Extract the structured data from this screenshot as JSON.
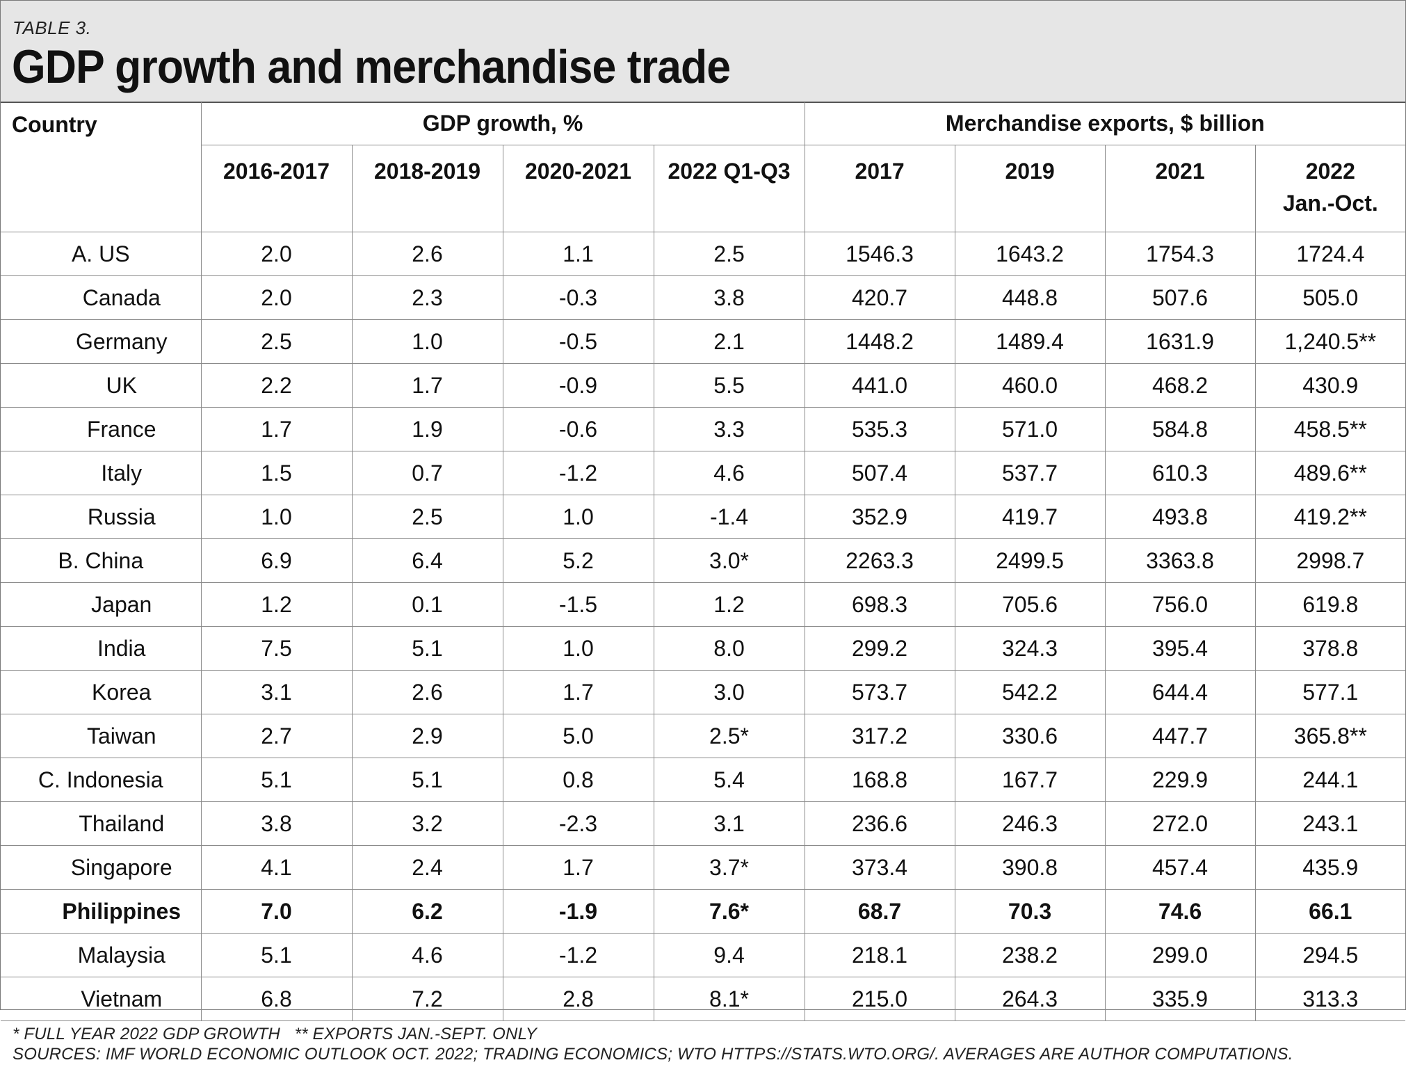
{
  "table_label": "TABLE 3.",
  "title": "GDP growth and merchandise trade",
  "headers": {
    "country": "Country",
    "gdp_group": "GDP growth, %",
    "exports_group": "Merchandise exports, $ billion",
    "gdp_cols": [
      "2016-2017",
      "2018-2019",
      "2020-2021",
      "2022 Q1-Q3"
    ],
    "export_cols": [
      "2017",
      "2019",
      "2021",
      "2022"
    ],
    "export_last_sub": "Jan.-Oct."
  },
  "rows": [
    {
      "country": "A. US",
      "values": [
        "2.0",
        "2.6",
        "1.1",
        "2.5",
        "1546.3",
        "1643.2",
        "1754.3",
        "1724.4"
      ]
    },
    {
      "country": "Canada",
      "values": [
        "2.0",
        "2.3",
        "-0.3",
        "3.8",
        "420.7",
        "448.8",
        "507.6",
        "505.0"
      ]
    },
    {
      "country": "Germany",
      "values": [
        "2.5",
        "1.0",
        "-0.5",
        "2.1",
        "1448.2",
        "1489.4",
        "1631.9",
        "1,240.5**"
      ]
    },
    {
      "country": "UK",
      "values": [
        "2.2",
        "1.7",
        "-0.9",
        "5.5",
        "441.0",
        "460.0",
        "468.2",
        "430.9"
      ]
    },
    {
      "country": "France",
      "values": [
        "1.7",
        "1.9",
        "-0.6",
        "3.3",
        "535.3",
        "571.0",
        "584.8",
        "458.5**"
      ]
    },
    {
      "country": "Italy",
      "values": [
        "1.5",
        "0.7",
        "-1.2",
        "4.6",
        "507.4",
        "537.7",
        "610.3",
        "489.6**"
      ]
    },
    {
      "country": "Russia",
      "values": [
        "1.0",
        "2.5",
        "1.0",
        "-1.4",
        "352.9",
        "419.7",
        "493.8",
        "419.2**"
      ]
    },
    {
      "country": "B. China",
      "values": [
        "6.9",
        "6.4",
        "5.2",
        "3.0*",
        "2263.3",
        "2499.5",
        "3363.8",
        "2998.7"
      ]
    },
    {
      "country": "Japan",
      "values": [
        "1.2",
        "0.1",
        "-1.5",
        "1.2",
        "698.3",
        "705.6",
        "756.0",
        "619.8"
      ]
    },
    {
      "country": "India",
      "values": [
        "7.5",
        "5.1",
        "1.0",
        "8.0",
        "299.2",
        "324.3",
        "395.4",
        "378.8"
      ]
    },
    {
      "country": "Korea",
      "values": [
        "3.1",
        "2.6",
        "1.7",
        "3.0",
        "573.7",
        "542.2",
        "644.4",
        "577.1"
      ]
    },
    {
      "country": "Taiwan",
      "values": [
        "2.7",
        "2.9",
        "5.0",
        "2.5*",
        "317.2",
        "330.6",
        "447.7",
        "365.8**"
      ]
    },
    {
      "country": "C. Indonesia",
      "values": [
        "5.1",
        "5.1",
        "0.8",
        "5.4",
        "168.8",
        "167.7",
        "229.9",
        "244.1"
      ]
    },
    {
      "country": "Thailand",
      "values": [
        "3.8",
        "3.2",
        "-2.3",
        "3.1",
        "236.6",
        "246.3",
        "272.0",
        "243.1"
      ]
    },
    {
      "country": "Singapore",
      "values": [
        "4.1",
        "2.4",
        "1.7",
        "3.7*",
        "373.4",
        "390.8",
        "457.4",
        "435.9"
      ]
    },
    {
      "country": "Philippines",
      "values": [
        "7.0",
        "6.2",
        "-1.9",
        "7.6*",
        "68.7",
        "70.3",
        "74.6",
        "66.1"
      ]
    },
    {
      "country": "Malaysia",
      "values": [
        "5.1",
        "4.6",
        "-1.2",
        "9.4",
        "218.1",
        "238.2",
        "299.0",
        "294.5"
      ]
    },
    {
      "country": "Vietnam",
      "values": [
        "6.8",
        "7.2",
        "2.8",
        "8.1*",
        "215.0",
        "264.3",
        "335.9",
        "313.3"
      ]
    }
  ],
  "footnotes": {
    "line1": "* FULL YEAR 2022 GDP GROWTH   ** EXPORTS JAN.-SEPT. ONLY",
    "line2": "SOURCES: IMF WORLD ECONOMIC OUTLOOK OCT. 2022; TRADING ECONOMICS; WTO HTTPS://STATS.WTO.ORG/. AVERAGES ARE AUTHOR COMPUTATIONS."
  }
}
